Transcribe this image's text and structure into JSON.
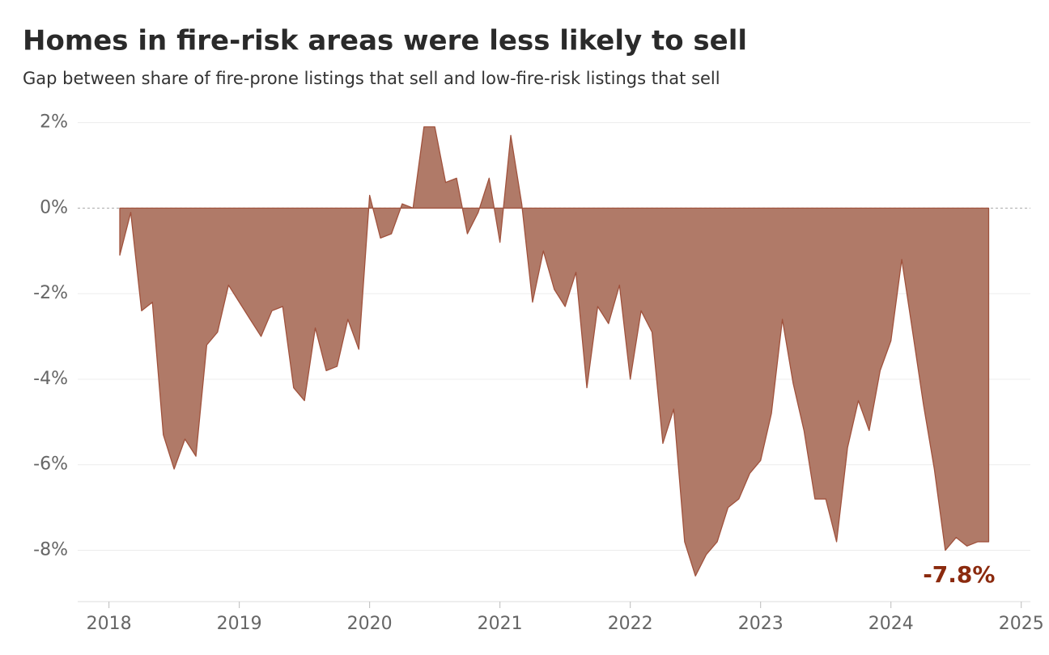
{
  "chart_data": {
    "type": "area",
    "title": "Homes in fire-risk areas were less likely to sell",
    "subtitle": "Gap between share of fire-prone listings that sell and low-fire-risk listings that sell",
    "x": [
      2018.083,
      2018.167,
      2018.25,
      2018.333,
      2018.417,
      2018.5,
      2018.583,
      2018.667,
      2018.75,
      2018.833,
      2018.917,
      2019,
      2019.083,
      2019.167,
      2019.25,
      2019.333,
      2019.417,
      2019.5,
      2019.583,
      2019.667,
      2019.75,
      2019.833,
      2019.917,
      2020,
      2020.083,
      2020.167,
      2020.25,
      2020.333,
      2020.417,
      2020.5,
      2020.583,
      2020.667,
      2020.75,
      2020.833,
      2020.917,
      2021,
      2021.083,
      2021.167,
      2021.25,
      2021.333,
      2021.417,
      2021.5,
      2021.583,
      2021.667,
      2021.75,
      2021.833,
      2021.917,
      2022,
      2022.083,
      2022.167,
      2022.25,
      2022.333,
      2022.417,
      2022.5,
      2022.583,
      2022.667,
      2022.75,
      2022.833,
      2022.917,
      2023,
      2023.083,
      2023.167,
      2023.25,
      2023.333,
      2023.417,
      2023.5,
      2023.583,
      2023.667,
      2023.75,
      2023.833,
      2023.917,
      2024,
      2024.083,
      2024.167,
      2024.25,
      2024.333,
      2024.417,
      2024.5,
      2024.583,
      2024.667,
      2024.75
    ],
    "series": [
      {
        "color": "#b07a68",
        "line_color": "#a0523d",
        "values": [
          -1.1,
          -0.1,
          -2.4,
          -2.2,
          -5.3,
          -6.1,
          -5.4,
          -5.8,
          -3.2,
          -2.9,
          -1.8,
          -2.2,
          -2.6,
          -3.0,
          -2.4,
          -2.3,
          -4.2,
          -4.5,
          -2.8,
          -3.8,
          -3.7,
          -2.6,
          -3.3,
          0.3,
          -0.7,
          -0.6,
          0.1,
          0.0,
          1.9,
          1.9,
          0.6,
          0.7,
          -0.6,
          -0.1,
          0.7,
          -0.8,
          1.7,
          0.1,
          -2.2,
          -1.0,
          -1.9,
          -2.3,
          -1.5,
          -4.2,
          -2.3,
          -2.7,
          -1.8,
          -4.0,
          -2.4,
          -2.9,
          -5.5,
          -4.7,
          -7.8,
          -8.6,
          -8.1,
          -7.8,
          -7.0,
          -6.8,
          -6.2,
          -5.9,
          -4.8,
          -2.6,
          -4.1,
          -5.2,
          -6.8,
          -6.8,
          -7.8,
          -5.6,
          -4.5,
          -5.2,
          -3.8,
          -3.1,
          -1.2,
          -2.9,
          -4.6,
          -6.1,
          -8.0,
          -7.7,
          -7.9,
          -7.8,
          -7.8
        ],
        "value_labels": [
          null,
          null,
          null,
          null,
          null,
          null,
          null,
          null,
          null,
          null,
          null,
          null,
          null,
          null,
          null,
          null,
          null,
          null,
          null,
          null,
          null,
          null,
          null,
          null,
          null,
          null,
          null,
          null,
          null,
          null,
          null,
          null,
          null,
          null,
          null,
          null,
          null,
          null,
          null,
          null,
          null,
          null,
          null,
          null,
          null,
          null,
          null,
          null,
          null,
          null,
          null,
          null,
          null,
          null,
          null,
          null,
          null,
          null,
          null,
          null,
          null,
          null,
          null,
          null,
          null,
          null,
          null,
          null,
          null,
          null,
          null,
          null,
          null,
          null,
          null,
          null,
          null,
          null,
          null,
          null,
          "-7.8%"
        ],
        "label_color": "#8b2a0e"
      }
    ],
    "xlim": [
      2017.76,
      2025.07
    ],
    "xticks": [
      2018,
      2019,
      2020,
      2021,
      2022,
      2023,
      2024,
      2025
    ],
    "ylim": [
      -9.2,
      2.2
    ],
    "yticks": [
      {
        "value": -8,
        "label": "-8%"
      },
      {
        "value": -6,
        "label": "-6%"
      },
      {
        "value": -4,
        "label": "-4%"
      },
      {
        "value": -2,
        "label": "-2%"
      },
      {
        "value": 0,
        "label": "0%"
      },
      {
        "value": 2,
        "label": "2%"
      }
    ],
    "grid": true
  }
}
